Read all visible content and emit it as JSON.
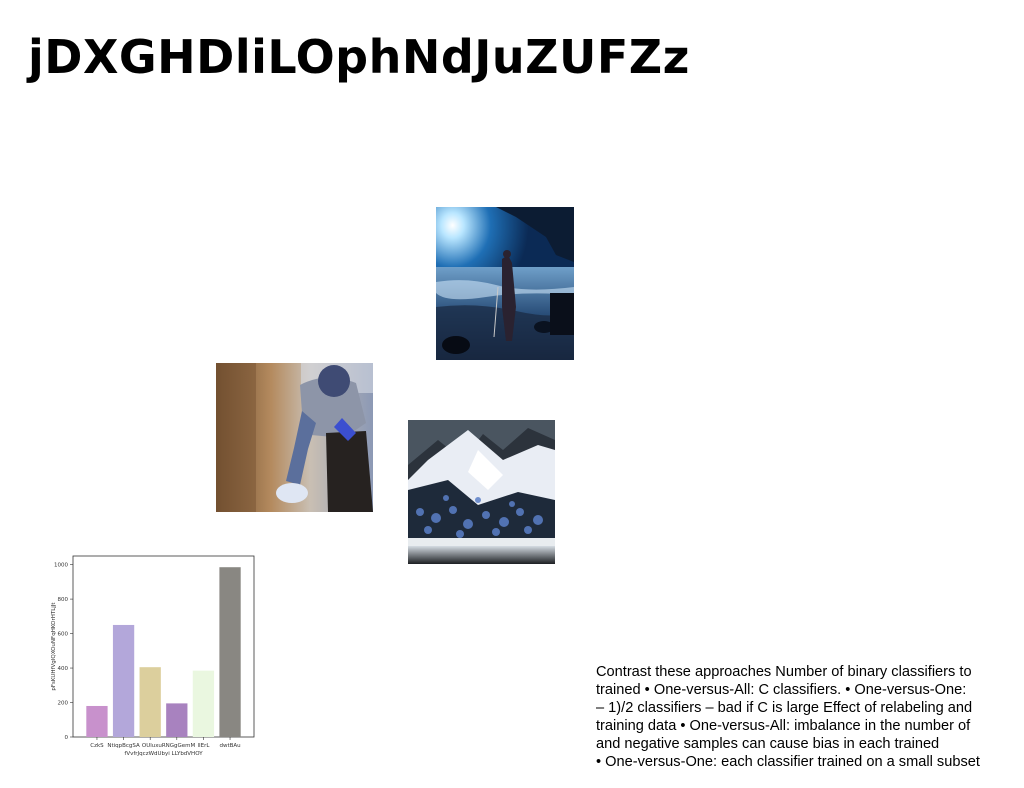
{
  "slide": {
    "title": "jDXGHDliLOphNdJuZUFZz",
    "body_lines": [
      "Contrast these approaches Number of binary classifiers to",
      "trained • One-versus-All: C classifiers. • One-versus-One:",
      "– 1)/2 classifiers – bad if C is large Effect of relabeling and",
      "training data • One-versus-All: imbalance in the number of",
      "and negative samples can cause bias in each trained",
      "• One-versus-One: each classifier trained on a small subset"
    ]
  },
  "chart_data": {
    "type": "bar",
    "categories": [
      "CzkS",
      "NtiqpBcgSA",
      "OUlux",
      "uRNGgGemM",
      "lIErL",
      "dwtBAu"
    ],
    "values": [
      180,
      650,
      405,
      195,
      385,
      985
    ],
    "colors": [
      "#c891cc",
      "#b3a7da",
      "#dccf9d",
      "#a882bf",
      "#eaf7e0",
      "#898782"
    ],
    "xlabel": "fVvfrJqczWdUbyi LLYbdVHOY",
    "ylabel": "pFsKUHfVgIQXOuNFqHKOrHTLjJt",
    "ylim": [
      0,
      1050
    ],
    "yticks": [
      0,
      200,
      400,
      600,
      800,
      1000
    ],
    "grid": false
  }
}
